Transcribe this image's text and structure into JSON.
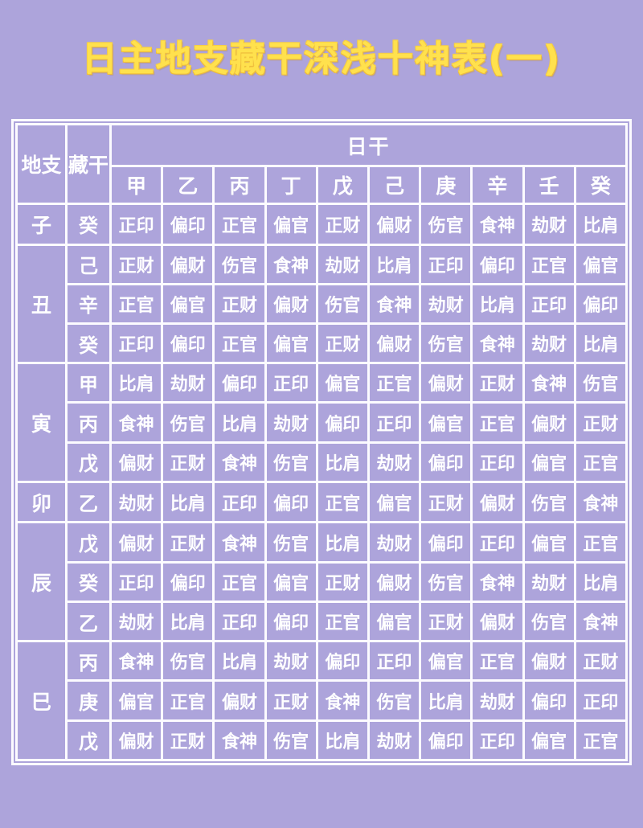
{
  "title": "日主地支藏干深浅十神表(一)",
  "colors": {
    "background": "#ada4db",
    "grid_line": "#fcfbff",
    "cell_text": "#ffffff",
    "title_fill": "#ffe14d",
    "title_edge": "#eebd3c"
  },
  "table": {
    "corner_headers": {
      "branch": "地支",
      "hidden_stem": "藏干"
    },
    "day_stem_header": "日干",
    "day_stems": [
      "甲",
      "乙",
      "丙",
      "丁",
      "戊",
      "己",
      "庚",
      "辛",
      "壬",
      "癸"
    ],
    "groups": [
      {
        "branch": "子",
        "rows": [
          {
            "stem": "癸",
            "gods": [
              "正印",
              "偏印",
              "正官",
              "偏官",
              "正财",
              "偏财",
              "伤官",
              "食神",
              "劫财",
              "比肩"
            ]
          }
        ]
      },
      {
        "branch": "丑",
        "rows": [
          {
            "stem": "己",
            "gods": [
              "正财",
              "偏财",
              "伤官",
              "食神",
              "劫财",
              "比肩",
              "正印",
              "偏印",
              "正官",
              "偏官"
            ]
          },
          {
            "stem": "辛",
            "gods": [
              "正官",
              "偏官",
              "正财",
              "偏财",
              "伤官",
              "食神",
              "劫财",
              "比肩",
              "正印",
              "偏印"
            ]
          },
          {
            "stem": "癸",
            "gods": [
              "正印",
              "偏印",
              "正官",
              "偏官",
              "正财",
              "偏财",
              "伤官",
              "食神",
              "劫财",
              "比肩"
            ]
          }
        ]
      },
      {
        "branch": "寅",
        "rows": [
          {
            "stem": "甲",
            "gods": [
              "比肩",
              "劫财",
              "偏印",
              "正印",
              "偏官",
              "正官",
              "偏财",
              "正财",
              "食神",
              "伤官"
            ]
          },
          {
            "stem": "丙",
            "gods": [
              "食神",
              "伤官",
              "比肩",
              "劫财",
              "偏印",
              "正印",
              "偏官",
              "正官",
              "偏财",
              "正财"
            ]
          },
          {
            "stem": "戊",
            "gods": [
              "偏财",
              "正财",
              "食神",
              "伤官",
              "比肩",
              "劫财",
              "偏印",
              "正印",
              "偏官",
              "正官"
            ]
          }
        ]
      },
      {
        "branch": "卯",
        "rows": [
          {
            "stem": "乙",
            "gods": [
              "劫财",
              "比肩",
              "正印",
              "偏印",
              "正官",
              "偏官",
              "正财",
              "偏财",
              "伤官",
              "食神"
            ]
          }
        ]
      },
      {
        "branch": "辰",
        "rows": [
          {
            "stem": "戊",
            "gods": [
              "偏财",
              "正财",
              "食神",
              "伤官",
              "比肩",
              "劫财",
              "偏印",
              "正印",
              "偏官",
              "正官"
            ]
          },
          {
            "stem": "癸",
            "gods": [
              "正印",
              "偏印",
              "正官",
              "偏官",
              "正财",
              "偏财",
              "伤官",
              "食神",
              "劫财",
              "比肩"
            ]
          },
          {
            "stem": "乙",
            "gods": [
              "劫财",
              "比肩",
              "正印",
              "偏印",
              "正官",
              "偏官",
              "正财",
              "偏财",
              "伤官",
              "食神"
            ]
          }
        ]
      },
      {
        "branch": "巳",
        "rows": [
          {
            "stem": "丙",
            "gods": [
              "食神",
              "伤官",
              "比肩",
              "劫财",
              "偏印",
              "正印",
              "偏官",
              "正官",
              "偏财",
              "正财"
            ]
          },
          {
            "stem": "庚",
            "gods": [
              "偏官",
              "正官",
              "偏财",
              "正财",
              "食神",
              "伤官",
              "比肩",
              "劫财",
              "偏印",
              "正印"
            ]
          },
          {
            "stem": "戊",
            "gods": [
              "偏财",
              "正财",
              "食神",
              "伤官",
              "比肩",
              "劫财",
              "偏印",
              "正印",
              "偏官",
              "正官"
            ]
          }
        ]
      }
    ]
  }
}
